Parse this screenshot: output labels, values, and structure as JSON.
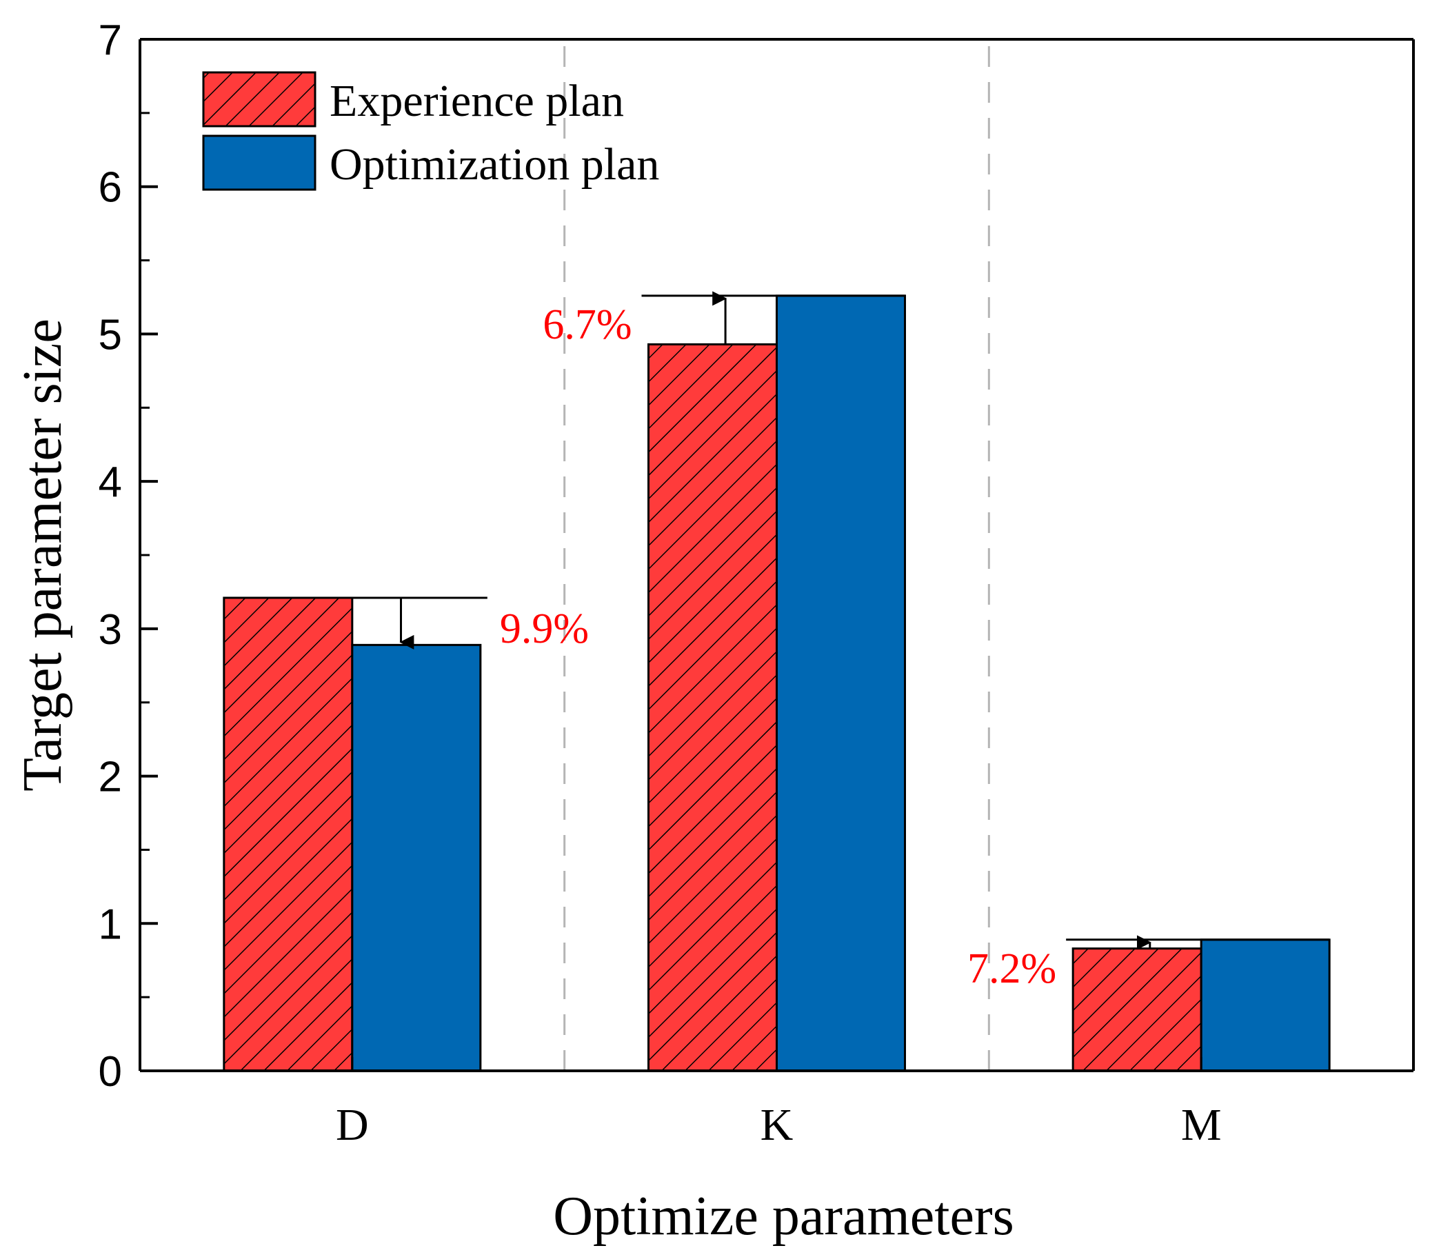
{
  "chart_data": {
    "type": "bar",
    "categories": [
      "D",
      "K",
      "M"
    ],
    "series": [
      {
        "name": "Experience plan",
        "values": [
          3.21,
          4.93,
          0.83
        ],
        "color": "#ff3b3b",
        "pattern": "hatch"
      },
      {
        "name": "Optimization plan",
        "values": [
          2.89,
          5.26,
          0.89
        ],
        "color": "#0068b3",
        "pattern": "solid"
      }
    ],
    "annotations": [
      {
        "category": "D",
        "text": "9.9%",
        "direction": "down",
        "color": "#ff0000"
      },
      {
        "category": "K",
        "text": "6.7%",
        "direction": "up",
        "color": "#ff0000"
      },
      {
        "category": "M",
        "text": "7.2%",
        "direction": "up",
        "color": "#ff0000"
      }
    ],
    "xlabel": "Optimize parameters",
    "ylabel": "Target parameter size",
    "ylim": [
      0,
      7
    ],
    "yticks": [
      "0",
      "1",
      "2",
      "3",
      "4",
      "5",
      "6",
      "7"
    ],
    "legend_position": "top-left",
    "grid": false,
    "category_separators": "dashed"
  }
}
